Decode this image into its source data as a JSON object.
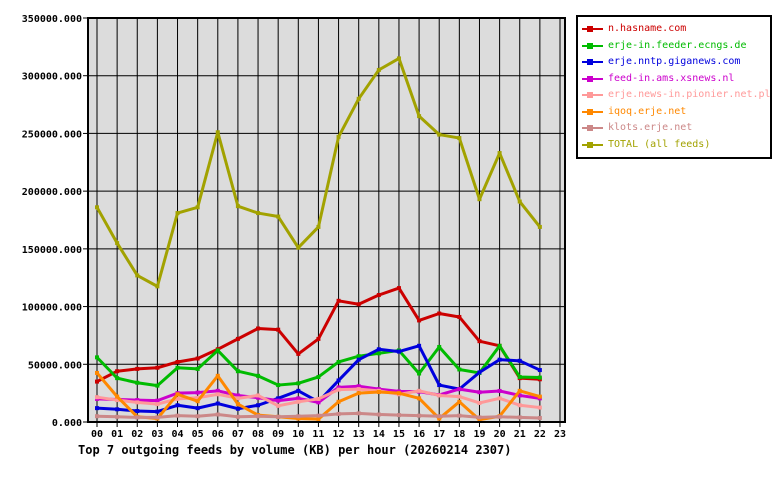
{
  "title": "Top 7 outgoing feeds by volume (KB) per hour (20260214 2307)",
  "chart_data": {
    "type": "line",
    "x_labels": [
      "00",
      "01",
      "02",
      "03",
      "04",
      "05",
      "06",
      "07",
      "08",
      "09",
      "10",
      "11",
      "12",
      "13",
      "14",
      "15",
      "16",
      "17",
      "18",
      "19",
      "20",
      "21",
      "22",
      "23"
    ],
    "hours_with_data": 23,
    "ylim": [
      0,
      350000
    ],
    "ytick_step": 50000,
    "ytick_labels": [
      "0.000",
      "50000.000",
      "100000.000",
      "150000.000",
      "200000.000",
      "250000.000",
      "300000.000",
      "350000.000"
    ],
    "grid": true,
    "plot_bg": "#dcdcdc",
    "grid_color": "#000000",
    "legend_position": "outside-top-right",
    "series": [
      {
        "name": "n.hasname.com",
        "color": "#cc0000",
        "values": [
          35000,
          44000,
          46000,
          47000,
          52000,
          55000,
          63000,
          72000,
          81000,
          80000,
          59000,
          72000,
          105000,
          102000,
          110000,
          116000,
          88000,
          94000,
          91000,
          70000,
          66000,
          38000,
          37000
        ]
      },
      {
        "name": "erje-in.feeder.ecngs.de",
        "color": "#00bb00",
        "values": [
          56000,
          38000,
          34000,
          31500,
          47000,
          46000,
          62000,
          44000,
          40000,
          32000,
          33500,
          39000,
          52000,
          57000,
          59500,
          62000,
          42000,
          65000,
          45500,
          42500,
          66000,
          39000,
          38500
        ]
      },
      {
        "name": "erje.nntp.giganews.com",
        "color": "#0000dd",
        "values": [
          12000,
          11000,
          9500,
          9000,
          14500,
          12000,
          16000,
          11500,
          14500,
          20500,
          27000,
          17500,
          36000,
          54000,
          63000,
          61000,
          66000,
          32000,
          28500,
          43000,
          54000,
          53000,
          45000
        ]
      },
      {
        "name": "feed-in.ams.xsnews.nl",
        "color": "#cc00cc",
        "values": [
          20000,
          19500,
          19000,
          18500,
          25000,
          25500,
          27000,
          23000,
          21000,
          18500,
          20500,
          17000,
          30000,
          31000,
          28500,
          26500,
          26300,
          23400,
          28500,
          25800,
          26900,
          23000,
          20500
        ]
      },
      {
        "name": "erje.news-in.pionier.net.pl",
        "color": "#ff9999",
        "values": [
          21500,
          19000,
          17000,
          15500,
          20000,
          21000,
          24000,
          20500,
          23000,
          14000,
          17500,
          20000,
          28000,
          28500,
          27000,
          24000,
          27000,
          23000,
          22000,
          16500,
          20500,
          14500,
          12500
        ]
      },
      {
        "name": "iqoq.erje.net",
        "color": "#ff8800",
        "values": [
          42500,
          22000,
          4500,
          3000,
          24000,
          18000,
          40000,
          15500,
          6000,
          4500,
          3000,
          2500,
          17500,
          25000,
          26000,
          25000,
          20500,
          3000,
          17500,
          2000,
          5000,
          27000,
          22000
        ]
      },
      {
        "name": "klots.erje.net",
        "color": "#cc8888",
        "values": [
          5000,
          4500,
          4000,
          4000,
          5500,
          5000,
          6500,
          4500,
          5000,
          4500,
          5000,
          5500,
          7000,
          7500,
          6500,
          6000,
          5500,
          5000,
          5500,
          4000,
          4500,
          4000,
          3500
        ]
      },
      {
        "name": "TOTAL (all feeds)",
        "color": "#a2a200",
        "values": [
          186000,
          155000,
          127000,
          117500,
          181000,
          186000,
          251000,
          187000,
          181000,
          178000,
          151000,
          169000,
          247000,
          280000,
          305000,
          315000,
          265000,
          249000,
          246000,
          193000,
          233000,
          191000,
          169000
        ]
      }
    ]
  }
}
